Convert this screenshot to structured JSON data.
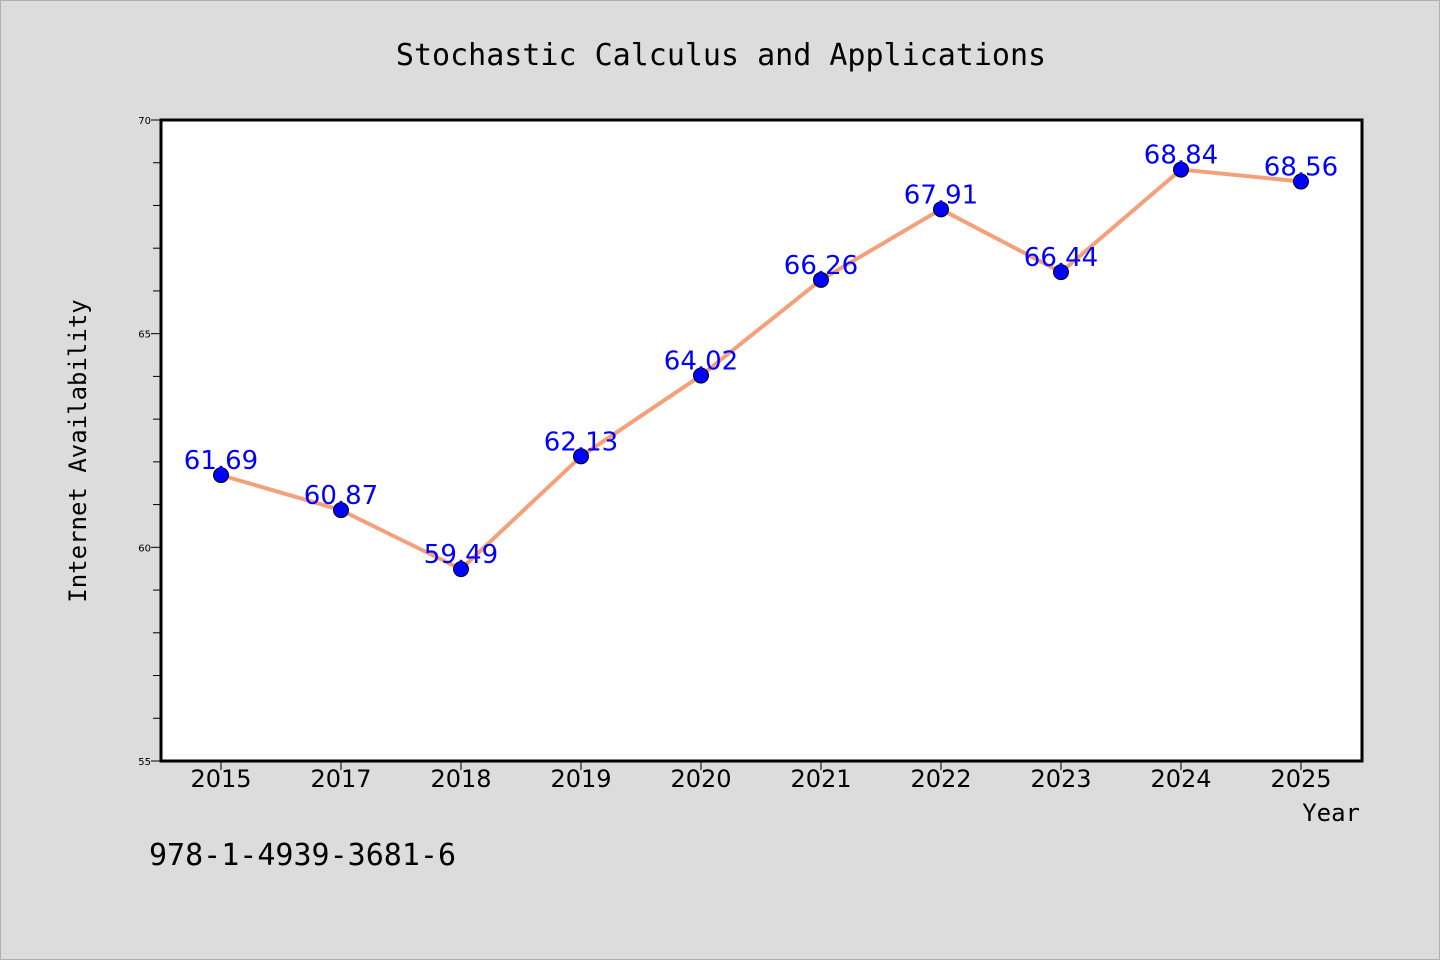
{
  "chart_data": {
    "type": "line",
    "title": "Stochastic Calculus and Applications",
    "xlabel": "Year",
    "ylabel": "Internet Availability",
    "categories": [
      "2015",
      "2017",
      "2018",
      "2019",
      "2020",
      "2021",
      "2022",
      "2023",
      "2024",
      "2025"
    ],
    "series": [
      {
        "values": [
          61.69,
          60.87,
          59.49,
          62.13,
          64.02,
          66.26,
          67.91,
          66.44,
          68.84,
          68.56
        ],
        "labels": [
          "61.69",
          "60.87",
          "59.49",
          "62.13",
          "64.02",
          "66.26",
          "67.91",
          "66.44",
          "68.84",
          "68.56"
        ],
        "line_color": "#f4a07a",
        "marker_color": "#0000ff"
      }
    ],
    "ylim": [
      55,
      70
    ],
    "yticks": [
      "55",
      "60",
      "65",
      "70"
    ],
    "grid": false,
    "legend": "none",
    "data_label_color": "#0000ff",
    "background_color": "#dcdcdc",
    "plot_background": "#ffffff"
  },
  "footer": {
    "isbn": "978-1-4939-3681-6"
  }
}
